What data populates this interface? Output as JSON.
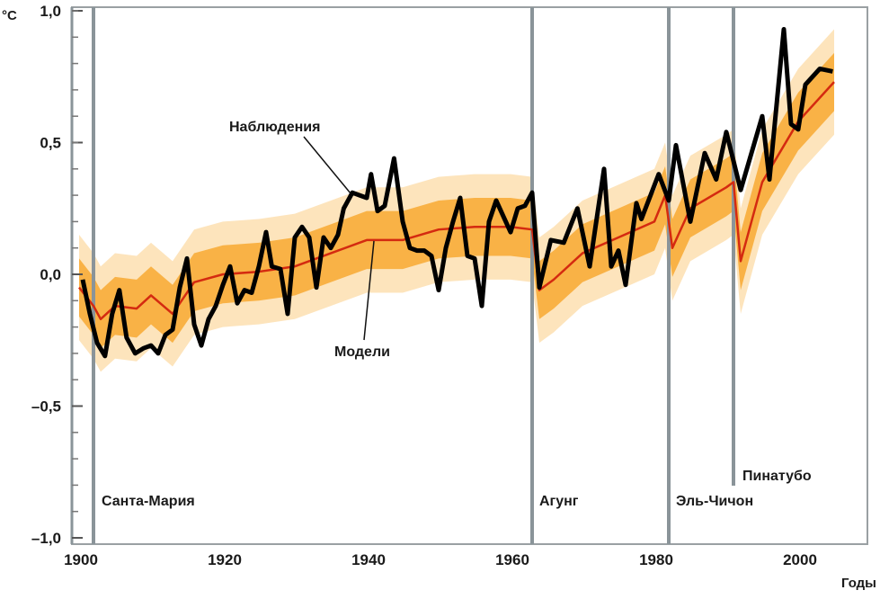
{
  "chart_data": {
    "type": "line",
    "xlabel": "Годы",
    "ylabel": "°C",
    "xlim": [
      1898,
      2008
    ],
    "ylim": [
      -1.0,
      1.0
    ],
    "x_ticks": [
      1900,
      1920,
      1940,
      1960,
      1980,
      2000
    ],
    "x_tick_labels": [
      "1900",
      "1920",
      "1940",
      "1960",
      "1980",
      "2000"
    ],
    "y_ticks": [
      1.0,
      0.5,
      0.0,
      -0.5,
      -1.0
    ],
    "y_tick_labels": [
      "1,0",
      "0,5",
      "0,0",
      "–0,5",
      "–1,0"
    ],
    "grid": false,
    "colors": {
      "observations": "#000000",
      "model_mean": "#d42a10",
      "model_band": "#f7a21f",
      "volcano_lines": "#8a9499"
    },
    "series": [
      {
        "name": "Наблюдения",
        "x": [
          1900.5,
          1901.5,
          1902.5,
          1903.6,
          1904.6,
          1905.6,
          1906.6,
          1907.8,
          1909,
          1910,
          1911,
          1912,
          1913,
          1914,
          1915,
          1916,
          1917,
          1918,
          1919,
          1920,
          1921,
          1922,
          1923,
          1924,
          1925,
          1926,
          1926.8,
          1928,
          1929,
          1930,
          1931,
          1932,
          1933,
          1934,
          1935,
          1936,
          1936.8,
          1938,
          1939,
          1940,
          1940.6,
          1941.5,
          1942.5,
          1943.8,
          1945,
          1946,
          1947,
          1948,
          1949,
          1950,
          1951,
          1952,
          1953,
          1954,
          1955,
          1956,
          1957,
          1958,
          1959,
          1960,
          1961,
          1962,
          1963,
          1964,
          1965.6,
          1967.4,
          1969.3,
          1971,
          1973,
          1974,
          1975,
          1976,
          1977.5,
          1978.2,
          1980.6,
          1982,
          1983,
          1985,
          1987,
          1988.6,
          1990,
          1992,
          1995,
          1996,
          1998,
          1999,
          2000,
          2001,
          2003,
          2004.8
        ],
        "values": [
          -0.02,
          -0.15,
          -0.26,
          -0.31,
          -0.15,
          -0.06,
          -0.24,
          -0.3,
          -0.28,
          -0.27,
          -0.3,
          -0.23,
          -0.21,
          -0.05,
          0.06,
          -0.19,
          -0.27,
          -0.17,
          -0.12,
          -0.04,
          0.03,
          -0.11,
          -0.06,
          -0.07,
          0.03,
          0.16,
          0.03,
          0.02,
          -0.15,
          0.14,
          0.18,
          0.14,
          -0.05,
          0.14,
          0.1,
          0.15,
          0.25,
          0.31,
          0.3,
          0.29,
          0.38,
          0.24,
          0.26,
          0.44,
          0.2,
          0.1,
          0.09,
          0.09,
          0.07,
          -0.06,
          0.1,
          0.2,
          0.29,
          0.07,
          0.06,
          -0.12,
          0.2,
          0.28,
          0.22,
          0.16,
          0.25,
          0.26,
          0.31,
          -0.05,
          0.13,
          0.12,
          0.25,
          0.03,
          0.4,
          0.03,
          0.09,
          -0.04,
          0.27,
          0.21,
          0.38,
          0.28,
          0.49,
          0.2,
          0.46,
          0.36,
          0.54,
          0.32,
          0.6,
          0.36,
          0.93,
          0.57,
          0.55,
          0.72,
          0.78,
          0.77
        ]
      },
      {
        "name": "Модели",
        "x": [
          1900,
          1902,
          1903,
          1905,
          1908,
          1910,
          1913,
          1916,
          1920,
          1925,
          1930,
          1935,
          1940,
          1945,
          1950,
          1955,
          1960,
          1963,
          1964,
          1966,
          1970,
          1975,
          1980,
          1981.5,
          1982.5,
          1985,
          1990,
          1991,
          1992,
          1995,
          2000,
          2005
        ],
        "values": [
          -0.05,
          -0.12,
          -0.17,
          -0.12,
          -0.13,
          -0.08,
          -0.15,
          -0.03,
          0.0,
          0.01,
          0.03,
          0.08,
          0.13,
          0.13,
          0.17,
          0.18,
          0.18,
          0.17,
          -0.06,
          -0.02,
          0.08,
          0.14,
          0.2,
          0.3,
          0.1,
          0.25,
          0.33,
          0.35,
          0.05,
          0.35,
          0.58,
          0.73
        ],
        "band_halfwidth": 0.2
      }
    ],
    "annotations": [
      {
        "text": "Наблюдения",
        "points_to_year": 1938
      },
      {
        "text": "Модели",
        "points_to_year": 1940
      }
    ],
    "volcanoes": [
      {
        "name": "Санта-Мария",
        "year": 1902
      },
      {
        "name": "Агунг",
        "year": 1963
      },
      {
        "name": "Эль-Чичон",
        "year": 1982
      },
      {
        "name": "Пинатубо",
        "year": 1991
      }
    ]
  }
}
